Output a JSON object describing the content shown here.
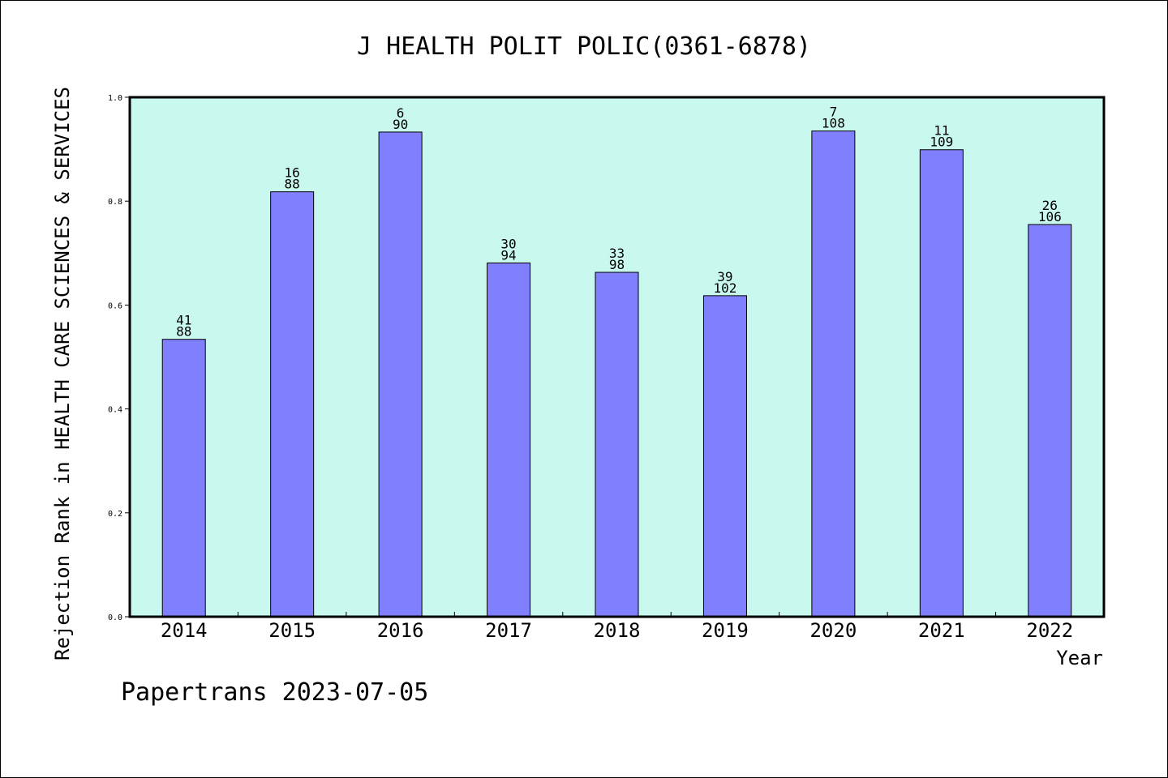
{
  "chart_data": {
    "type": "bar",
    "title": "J HEALTH POLIT POLIC(0361-6878)",
    "xlabel": "Year",
    "ylabel": "Rejection Rank in HEALTH CARE SCIENCES & SERVICES",
    "ylim": [
      0.0,
      1.0
    ],
    "yticks": [
      "0.0",
      "0.2",
      "0.4",
      "0.6",
      "0.8",
      "1.0"
    ],
    "categories": [
      "2014",
      "2015",
      "2016",
      "2017",
      "2018",
      "2019",
      "2020",
      "2021",
      "2022"
    ],
    "values": [
      0.534,
      0.818,
      0.933,
      0.681,
      0.663,
      0.618,
      0.935,
      0.899,
      0.755
    ],
    "labels_top": [
      "41",
      "16",
      "6",
      "30",
      "33",
      "39",
      "7",
      "11",
      "26"
    ],
    "labels_bottom": [
      "88",
      "88",
      "90",
      "94",
      "98",
      "102",
      "108",
      "109",
      "106"
    ],
    "colors": {
      "plot_background": "#c8f8ee",
      "bar_fill": "#8080ff",
      "bar_stroke": "#000000"
    }
  },
  "footer": "Papertrans 2023-07-05"
}
